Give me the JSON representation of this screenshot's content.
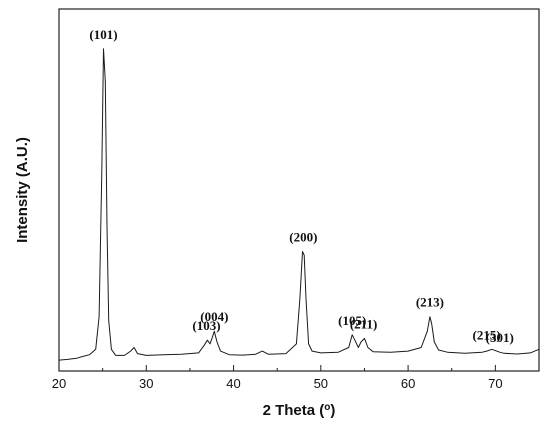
{
  "chart_data": {
    "type": "line",
    "xlabel": "2 Theta (",
    "xlabel_unit": "o",
    "xlabel_close": ")",
    "ylabel": "Intensity (A.U.)",
    "xlim": [
      20,
      75
    ],
    "ylim": [
      0,
      100
    ],
    "xticks": [
      20,
      30,
      40,
      50,
      60,
      70
    ],
    "grid": false,
    "y_tick_labels_shown": false,
    "line_color": "#1a1a1a",
    "x": [
      20.0,
      21.0,
      22.0,
      22.7,
      23.5,
      24.2,
      24.6,
      24.9,
      25.1,
      25.3,
      25.5,
      25.7,
      26.0,
      26.5,
      27.5,
      28.2,
      28.6,
      29.0,
      30.0,
      32.0,
      34.0,
      36.0,
      36.6,
      37.0,
      37.3,
      37.6,
      37.8,
      38.1,
      38.5,
      39.5,
      41.0,
      42.5,
      43.3,
      44.0,
      46.0,
      47.2,
      47.6,
      47.9,
      48.1,
      48.3,
      48.6,
      49.0,
      50.0,
      52.0,
      53.2,
      53.6,
      53.9,
      54.3,
      54.6,
      55.0,
      55.4,
      56.0,
      58.0,
      60.0,
      61.5,
      62.2,
      62.5,
      62.7,
      63.0,
      63.5,
      64.5,
      66.5,
      68.5,
      69.0,
      69.6,
      70.5,
      71.0,
      72.5,
      74.0,
      75.0
    ],
    "y": [
      3.0,
      3.2,
      3.5,
      4.0,
      4.5,
      6.0,
      15.0,
      55.0,
      89.0,
      80.0,
      40.0,
      14.0,
      6.0,
      4.3,
      4.3,
      5.5,
      6.5,
      4.8,
      4.3,
      4.5,
      4.6,
      5.0,
      7.0,
      8.5,
      7.5,
      9.5,
      11.0,
      8.0,
      5.5,
      4.5,
      4.4,
      4.6,
      5.5,
      4.6,
      4.8,
      7.5,
      20.0,
      33.0,
      32.0,
      20.0,
      7.5,
      5.5,
      5.0,
      5.2,
      6.5,
      10.0,
      8.5,
      6.5,
      8.0,
      9.0,
      6.5,
      5.3,
      5.2,
      5.5,
      6.5,
      11.0,
      15.0,
      13.0,
      8.0,
      5.8,
      5.2,
      4.9,
      5.2,
      5.5,
      6.0,
      5.2,
      4.9,
      4.7,
      5.0,
      6.0
    ],
    "annotations": [
      {
        "label": "(101)",
        "x": 25.1,
        "y": 89.0
      },
      {
        "label": "(103)",
        "x": 36.9,
        "y": 8.5
      },
      {
        "label": "(004)",
        "x": 37.8,
        "y": 11.0
      },
      {
        "label": "(200)",
        "x": 48.0,
        "y": 33.0
      },
      {
        "label": "(105)",
        "x": 53.6,
        "y": 10.0
      },
      {
        "label": "(211)",
        "x": 54.9,
        "y": 9.0
      },
      {
        "label": "(213)",
        "x": 62.5,
        "y": 15.0
      },
      {
        "label": "(215)",
        "x": 69.0,
        "y": 6.0
      },
      {
        "label": "(301)",
        "x": 70.5,
        "y": 5.2
      }
    ]
  }
}
